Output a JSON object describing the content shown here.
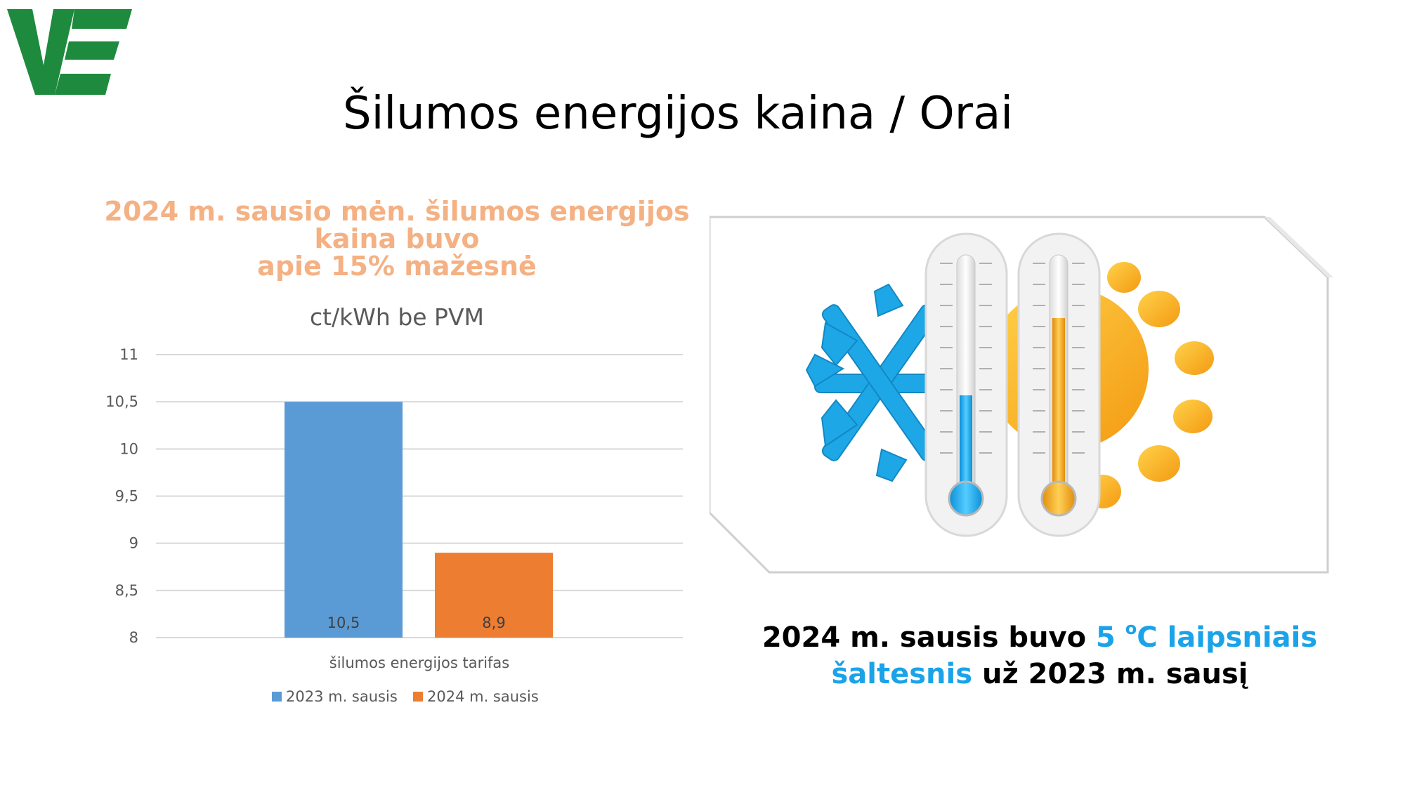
{
  "slide": {
    "title": "Šilumos energijos kaina / Orai",
    "logo_letters": "VE"
  },
  "headline": {
    "line1": "2024 m. sausio mėn. šilumos energijos",
    "line2": "kaina buvo",
    "line3": "apie 15% mažesnė"
  },
  "caption": {
    "part1": "2024 m. sausis buvo ",
    "highlight1": "5 ",
    "degree_sup": "o",
    "highlight2": "C laipsniais",
    "highlight3": "šaltesnis",
    "part2": " už 2023 m. sausį"
  },
  "colors": {
    "logo_green": "#1e8a3e",
    "headline": "#F4B183",
    "series_2023": "#5B9BD5",
    "series_2024": "#ED7D31",
    "highlight_blue": "#1aa3e8"
  },
  "icons": [
    "snowflake-icon",
    "sun-icon",
    "thermometer-icon"
  ],
  "chart_data": {
    "type": "bar",
    "title": "ct/kWh be PVM",
    "categories": [
      "šilumos energijos tarifas"
    ],
    "series": [
      {
        "name": "2023 m. sausis",
        "values": [
          10.5
        ],
        "label": "10,5",
        "color": "#5B9BD5"
      },
      {
        "name": "2024 m. sausis",
        "values": [
          8.9
        ],
        "label": "8,9",
        "color": "#ED7D31"
      }
    ],
    "ylim": [
      8,
      11
    ],
    "yticks": [
      8,
      8.5,
      9,
      9.5,
      10,
      10.5,
      11
    ],
    "ytick_labels": [
      "8",
      "8,5",
      "9",
      "9,5",
      "10",
      "10,5",
      "11"
    ],
    "grid": true,
    "legend": "bottom",
    "xlabel": "",
    "ylabel": ""
  }
}
